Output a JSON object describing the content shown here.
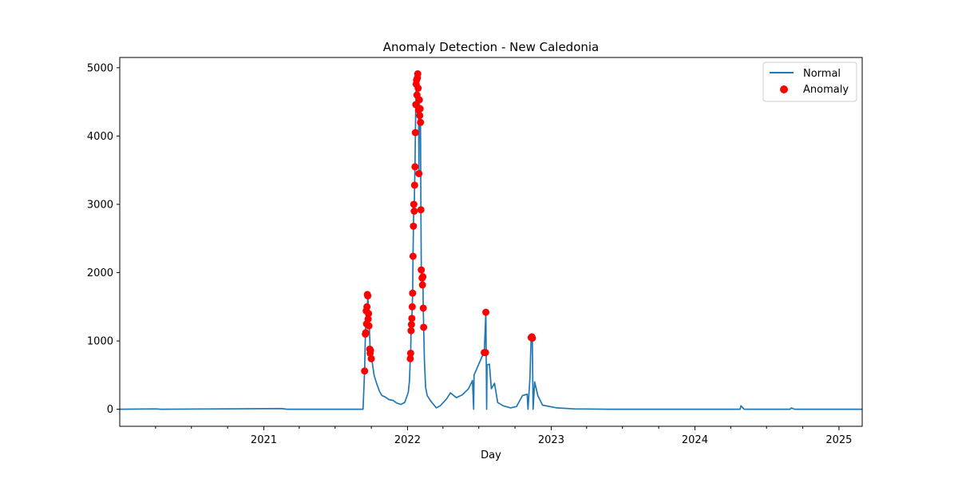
{
  "chart_data": {
    "type": "line",
    "title": "Anomaly Detection - New Caledonia",
    "xlabel": "Day",
    "ylabel": "",
    "xlim": [
      "2020-01-01",
      "2025-03-01"
    ],
    "ylim": [
      -250,
      5150
    ],
    "x_ticks": [
      "2021",
      "2022",
      "2023",
      "2024",
      "2025"
    ],
    "y_ticks": [
      0,
      1000,
      2000,
      3000,
      4000,
      5000
    ],
    "grid": false,
    "legend_position": "top-right",
    "colors": {
      "normal": "#1f77b4",
      "anomaly": "#ff0000"
    },
    "series": [
      {
        "name": "Normal",
        "kind": "line",
        "points": [
          [
            "2020-01-01",
            0
          ],
          [
            "2020-04-01",
            5
          ],
          [
            "2020-04-15",
            0
          ],
          [
            "2021-02-15",
            10
          ],
          [
            "2021-03-01",
            0
          ],
          [
            "2021-09-10",
            0
          ],
          [
            "2021-09-14",
            560
          ],
          [
            "2021-09-16",
            1100
          ],
          [
            "2021-09-18",
            1440
          ],
          [
            "2021-09-20",
            1200
          ],
          [
            "2021-09-22",
            1680
          ],
          [
            "2021-09-24",
            1400
          ],
          [
            "2021-09-26",
            1220
          ],
          [
            "2021-09-28",
            880
          ],
          [
            "2021-10-02",
            740
          ],
          [
            "2021-10-08",
            500
          ],
          [
            "2021-10-15",
            370
          ],
          [
            "2021-10-22",
            260
          ],
          [
            "2021-10-28",
            200
          ],
          [
            "2021-11-05",
            180
          ],
          [
            "2021-11-15",
            140
          ],
          [
            "2021-11-25",
            130
          ],
          [
            "2021-12-05",
            90
          ],
          [
            "2021-12-15",
            70
          ],
          [
            "2021-12-25",
            100
          ],
          [
            "2022-01-03",
            250
          ],
          [
            "2022-01-06",
            420
          ],
          [
            "2022-01-08",
            740
          ],
          [
            "2022-01-09",
            820
          ],
          [
            "2022-01-10",
            1150
          ],
          [
            "2022-01-11",
            1240
          ],
          [
            "2022-01-12",
            1330
          ],
          [
            "2022-01-13",
            1500
          ],
          [
            "2022-01-14",
            1700
          ],
          [
            "2022-01-15",
            2240
          ],
          [
            "2022-01-16",
            2680
          ],
          [
            "2022-01-17",
            3000
          ],
          [
            "2022-01-18",
            2900
          ],
          [
            "2022-01-19",
            3280
          ],
          [
            "2022-01-20",
            3550
          ],
          [
            "2022-01-21",
            4050
          ],
          [
            "2022-01-22",
            4460
          ],
          [
            "2022-01-23",
            4760
          ],
          [
            "2022-01-24",
            4820
          ],
          [
            "2022-01-25",
            4600
          ],
          [
            "2022-01-26",
            4850
          ],
          [
            "2022-01-27",
            4900
          ],
          [
            "2022-01-28",
            4700
          ],
          [
            "2022-01-29",
            4380
          ],
          [
            "2022-01-30",
            3450
          ],
          [
            "2022-01-31",
            4530
          ],
          [
            "2022-02-01",
            4300
          ],
          [
            "2022-02-02",
            4400
          ],
          [
            "2022-02-03",
            4200
          ],
          [
            "2022-02-04",
            2920
          ],
          [
            "2022-02-05",
            2040
          ],
          [
            "2022-02-07",
            1920
          ],
          [
            "2022-02-08",
            1820
          ],
          [
            "2022-02-09",
            1940
          ],
          [
            "2022-02-10",
            1480
          ],
          [
            "2022-02-11",
            1200
          ],
          [
            "2022-02-13",
            700
          ],
          [
            "2022-02-16",
            320
          ],
          [
            "2022-02-20",
            200
          ],
          [
            "2022-03-01",
            120
          ],
          [
            "2022-03-15",
            20
          ],
          [
            "2022-03-25",
            50
          ],
          [
            "2022-04-10",
            150
          ],
          [
            "2022-04-20",
            240
          ],
          [
            "2022-05-05",
            170
          ],
          [
            "2022-05-20",
            210
          ],
          [
            "2022-06-05",
            300
          ],
          [
            "2022-06-15",
            420
          ],
          [
            "2022-06-18",
            0
          ],
          [
            "2022-06-19",
            500
          ],
          [
            "2022-07-01",
            660
          ],
          [
            "2022-07-10",
            780
          ],
          [
            "2022-07-15",
            830
          ],
          [
            "2022-07-19",
            1420
          ],
          [
            "2022-07-21",
            0
          ],
          [
            "2022-07-22",
            650
          ],
          [
            "2022-07-28",
            660
          ],
          [
            "2022-08-02",
            300
          ],
          [
            "2022-08-10",
            380
          ],
          [
            "2022-08-18",
            100
          ],
          [
            "2022-09-01",
            50
          ],
          [
            "2022-09-20",
            20
          ],
          [
            "2022-10-05",
            40
          ],
          [
            "2022-10-20",
            200
          ],
          [
            "2022-11-01",
            220
          ],
          [
            "2022-11-03",
            0
          ],
          [
            "2022-11-08",
            460
          ],
          [
            "2022-11-11",
            1050
          ],
          [
            "2022-11-14",
            1040
          ],
          [
            "2022-11-16",
            0
          ],
          [
            "2022-11-20",
            400
          ],
          [
            "2022-11-28",
            200
          ],
          [
            "2022-12-10",
            60
          ],
          [
            "2023-01-15",
            20
          ],
          [
            "2023-03-01",
            5
          ],
          [
            "2023-06-01",
            0
          ],
          [
            "2024-04-25",
            0
          ],
          [
            "2024-04-27",
            50
          ],
          [
            "2024-05-05",
            0
          ],
          [
            "2024-08-30",
            0
          ],
          [
            "2024-09-02",
            20
          ],
          [
            "2024-09-10",
            0
          ],
          [
            "2025-03-01",
            0
          ]
        ]
      },
      {
        "name": "Anomaly",
        "kind": "scatter",
        "points": [
          [
            "2021-09-14",
            560
          ],
          [
            "2021-09-16",
            1100
          ],
          [
            "2021-09-17",
            1120
          ],
          [
            "2021-09-18",
            1440
          ],
          [
            "2021-09-19",
            1250
          ],
          [
            "2021-09-20",
            1500
          ],
          [
            "2021-09-21",
            1680
          ],
          [
            "2021-09-22",
            1660
          ],
          [
            "2021-09-23",
            1320
          ],
          [
            "2021-09-24",
            1400
          ],
          [
            "2021-09-25",
            1220
          ],
          [
            "2021-09-27",
            880
          ],
          [
            "2021-09-28",
            820
          ],
          [
            "2021-09-29",
            860
          ],
          [
            "2021-10-01",
            740
          ],
          [
            "2022-01-08",
            740
          ],
          [
            "2022-01-09",
            820
          ],
          [
            "2022-01-10",
            1150
          ],
          [
            "2022-01-11",
            1240
          ],
          [
            "2022-01-12",
            1330
          ],
          [
            "2022-01-13",
            1500
          ],
          [
            "2022-01-14",
            1700
          ],
          [
            "2022-01-15",
            2240
          ],
          [
            "2022-01-16",
            2680
          ],
          [
            "2022-01-17",
            3000
          ],
          [
            "2022-01-18",
            2900
          ],
          [
            "2022-01-19",
            3280
          ],
          [
            "2022-01-20",
            3550
          ],
          [
            "2022-01-21",
            4050
          ],
          [
            "2022-01-22",
            4460
          ],
          [
            "2022-01-23",
            4760
          ],
          [
            "2022-01-24",
            4820
          ],
          [
            "2022-01-25",
            4600
          ],
          [
            "2022-01-26",
            4850
          ],
          [
            "2022-01-27",
            4910
          ],
          [
            "2022-01-28",
            4700
          ],
          [
            "2022-01-29",
            4380
          ],
          [
            "2022-01-30",
            3450
          ],
          [
            "2022-01-31",
            4530
          ],
          [
            "2022-02-01",
            4300
          ],
          [
            "2022-02-02",
            4400
          ],
          [
            "2022-02-03",
            4200
          ],
          [
            "2022-02-04",
            2920
          ],
          [
            "2022-02-05",
            2040
          ],
          [
            "2022-02-07",
            1920
          ],
          [
            "2022-02-08",
            1820
          ],
          [
            "2022-02-09",
            1940
          ],
          [
            "2022-02-10",
            1480
          ],
          [
            "2022-02-11",
            1200
          ],
          [
            "2022-07-15",
            830
          ],
          [
            "2022-07-18",
            830
          ],
          [
            "2022-07-19",
            1420
          ],
          [
            "2022-11-11",
            1050
          ],
          [
            "2022-11-13",
            1060
          ],
          [
            "2022-11-14",
            1040
          ]
        ]
      }
    ]
  }
}
